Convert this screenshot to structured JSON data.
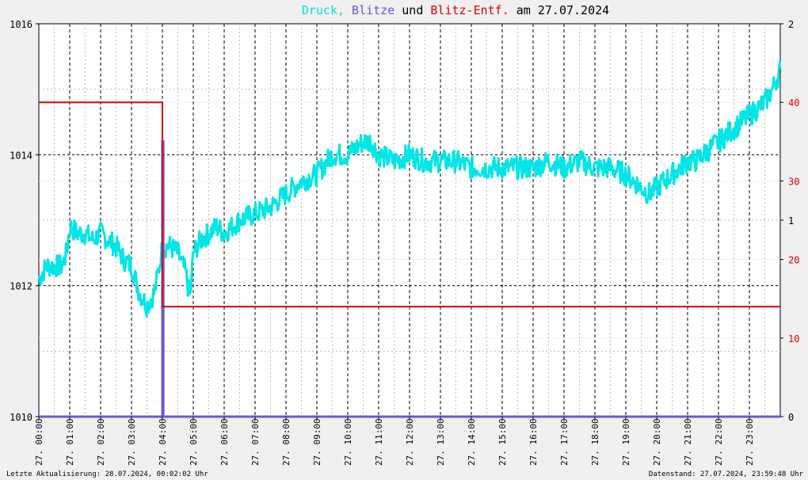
{
  "title": {
    "part_druck": "Druck,",
    "part_blitze": "Blitze",
    "part_und": "und",
    "part_entf": "Blitz-Entf.",
    "part_am": "am 27.07.2024",
    "colors": {
      "druck": "#00e5e5",
      "blitze": "#6a5acd",
      "entf": "#e00000",
      "text": "#000000"
    }
  },
  "footer": {
    "left": "Letzte Aktualisierung: 28.07.2024, 00:02:02 Uhr",
    "right": "Datenstand: 27.07.2024, 23:59:48 Uhr"
  },
  "chart_data": {
    "type": "line",
    "x_tick_labels": [
      "27. 00:00",
      "27. 01:00",
      "27. 02:00",
      "27. 03:00",
      "27. 04:00",
      "27. 05:00",
      "27. 06:00",
      "27. 07:00",
      "27. 08:00",
      "27. 09:00",
      "27. 10:00",
      "27. 11:00",
      "27. 12:00",
      "27. 13:00",
      "27. 14:00",
      "27. 15:00",
      "27. 16:00",
      "27. 17:00",
      "27. 18:00",
      "27. 19:00",
      "27. 20:00",
      "27. 21:00",
      "27. 22:00",
      "27. 23:00"
    ],
    "x_range_hours": [
      0,
      24
    ],
    "y_left": {
      "ticks": [
        "1016",
        "1014",
        "1012",
        "1010"
      ],
      "range": [
        1010,
        1016
      ]
    },
    "y_right_blitze": {
      "ticks": [
        "2",
        "1",
        "0"
      ],
      "range": [
        0,
        2
      ]
    },
    "y_right_entf": {
      "ticks": [
        "40",
        "30",
        "20",
        "10"
      ],
      "range": [
        0,
        50
      ]
    },
    "grid": true,
    "series": [
      {
        "id": "druck",
        "color": "#00e5e5",
        "x_hours": [
          0,
          0.25,
          0.5,
          0.75,
          0.9,
          1.0,
          1.25,
          1.5,
          1.75,
          2.0,
          2.25,
          2.5,
          2.75,
          3.0,
          3.25,
          3.5,
          3.75,
          3.9,
          4.0,
          4.25,
          4.5,
          4.75,
          4.9,
          5.0,
          5.25,
          5.5,
          5.75,
          6.0,
          6.5,
          7.0,
          7.5,
          8.0,
          8.5,
          9.0,
          9.5,
          10.0,
          10.25,
          10.5,
          10.75,
          11.0,
          11.5,
          12.0,
          12.5,
          13.0,
          13.5,
          14.0,
          14.5,
          15.0,
          15.5,
          16.0,
          16.5,
          17.0,
          17.5,
          18.0,
          18.5,
          19.0,
          19.25,
          19.5,
          19.75,
          20.0,
          20.25,
          20.5,
          20.75,
          21.0,
          21.25,
          21.5,
          21.75,
          22.0,
          22.5,
          23.0,
          23.5,
          23.75,
          24.0
        ],
        "values": [
          1012.1,
          1012.3,
          1012.3,
          1012.3,
          1012.5,
          1012.9,
          1012.8,
          1012.8,
          1012.7,
          1012.8,
          1012.7,
          1012.6,
          1012.4,
          1012.3,
          1011.9,
          1011.7,
          1011.9,
          1012.3,
          1012.6,
          1012.6,
          1012.5,
          1012.2,
          1011.8,
          1012.5,
          1012.7,
          1012.8,
          1012.9,
          1012.8,
          1013.0,
          1013.1,
          1013.2,
          1013.4,
          1013.6,
          1013.7,
          1014.0,
          1014.0,
          1014.1,
          1014.2,
          1014.2,
          1014.0,
          1013.9,
          1014.0,
          1013.9,
          1013.9,
          1013.9,
          1013.8,
          1013.8,
          1013.8,
          1013.8,
          1013.8,
          1013.9,
          1013.8,
          1013.9,
          1013.8,
          1013.8,
          1013.7,
          1013.6,
          1013.5,
          1013.4,
          1013.5,
          1013.6,
          1013.7,
          1013.8,
          1013.9,
          1013.9,
          1014.0,
          1014.1,
          1014.2,
          1014.4,
          1014.6,
          1014.8,
          1015.0,
          1015.3
        ]
      },
      {
        "id": "blitze",
        "color": "#6a5acd",
        "x_hours": [
          0,
          4.0,
          4.0,
          4.03,
          4.03,
          24
        ],
        "values": [
          0,
          0,
          1.4,
          1.4,
          0,
          0
        ]
      },
      {
        "id": "blitz_entf",
        "color": "#e00000",
        "x_hours": [
          0,
          4.0,
          4.0,
          24
        ],
        "values": [
          40,
          40,
          14,
          14
        ]
      }
    ]
  }
}
